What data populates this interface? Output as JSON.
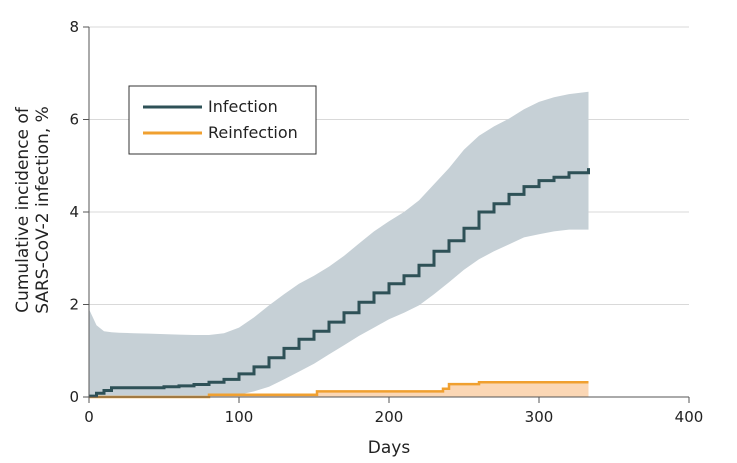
{
  "chart_data": {
    "type": "line",
    "title": "",
    "xlabel": "Days",
    "ylabel_lines": [
      "Cumulative incidence of",
      "SARS-CoV-2 infection, %"
    ],
    "xlim": [
      0,
      400
    ],
    "ylim": [
      0,
      8
    ],
    "xticks": [
      0,
      100,
      200,
      300,
      400
    ],
    "yticks": [
      0,
      2,
      4,
      6,
      8
    ],
    "xtick_labels": [
      "0",
      "100",
      "200",
      "300",
      "400"
    ],
    "ytick_labels": [
      "0",
      "2",
      "4",
      "6",
      "8"
    ],
    "grid": "horizontal",
    "legend_position": "top-left",
    "colors": {
      "infection_line": "#2e5157",
      "infection_ci": "#c6d0d6",
      "reinfection_line": "#f0a030",
      "reinfection_fill": "#fbd7b5",
      "grid": "#d9d9d9",
      "axis": "#555555"
    },
    "series": [
      {
        "name": "Infection",
        "x": [
          0,
          5,
          10,
          15,
          20,
          30,
          40,
          50,
          60,
          70,
          80,
          90,
          100,
          110,
          120,
          130,
          140,
          150,
          160,
          170,
          180,
          190,
          200,
          210,
          220,
          230,
          240,
          250,
          260,
          270,
          280,
          290,
          300,
          310,
          320,
          333
        ],
        "y": [
          0.02,
          0.08,
          0.14,
          0.2,
          0.2,
          0.2,
          0.2,
          0.22,
          0.24,
          0.27,
          0.32,
          0.38,
          0.5,
          0.65,
          0.85,
          1.05,
          1.25,
          1.42,
          1.62,
          1.82,
          2.05,
          2.25,
          2.45,
          2.62,
          2.85,
          3.15,
          3.38,
          3.65,
          4.0,
          4.18,
          4.38,
          4.55,
          4.68,
          4.75,
          4.85,
          4.95
        ],
        "ci_upper": [
          1.9,
          1.55,
          1.42,
          1.4,
          1.39,
          1.38,
          1.37,
          1.36,
          1.35,
          1.34,
          1.34,
          1.38,
          1.5,
          1.72,
          1.98,
          2.22,
          2.45,
          2.62,
          2.82,
          3.05,
          3.32,
          3.58,
          3.8,
          4.0,
          4.25,
          4.6,
          4.95,
          5.35,
          5.65,
          5.85,
          6.02,
          6.22,
          6.38,
          6.48,
          6.55,
          6.6
        ],
        "ci_lower": [
          0.0,
          0.0,
          0.0,
          0.0,
          0.0,
          0.0,
          0.0,
          0.0,
          0.0,
          0.0,
          0.0,
          0.02,
          0.05,
          0.12,
          0.22,
          0.38,
          0.55,
          0.72,
          0.92,
          1.12,
          1.32,
          1.5,
          1.68,
          1.82,
          1.98,
          2.22,
          2.48,
          2.75,
          2.98,
          3.15,
          3.3,
          3.45,
          3.52,
          3.58,
          3.62,
          3.62
        ]
      },
      {
        "name": "Reinfection",
        "x": [
          0,
          80,
          80,
          152,
          152,
          236,
          236,
          240,
          240,
          260,
          260,
          333
        ],
        "y": [
          0.0,
          0.0,
          0.05,
          0.05,
          0.12,
          0.12,
          0.18,
          0.18,
          0.28,
          0.28,
          0.32,
          0.32
        ]
      }
    ]
  }
}
